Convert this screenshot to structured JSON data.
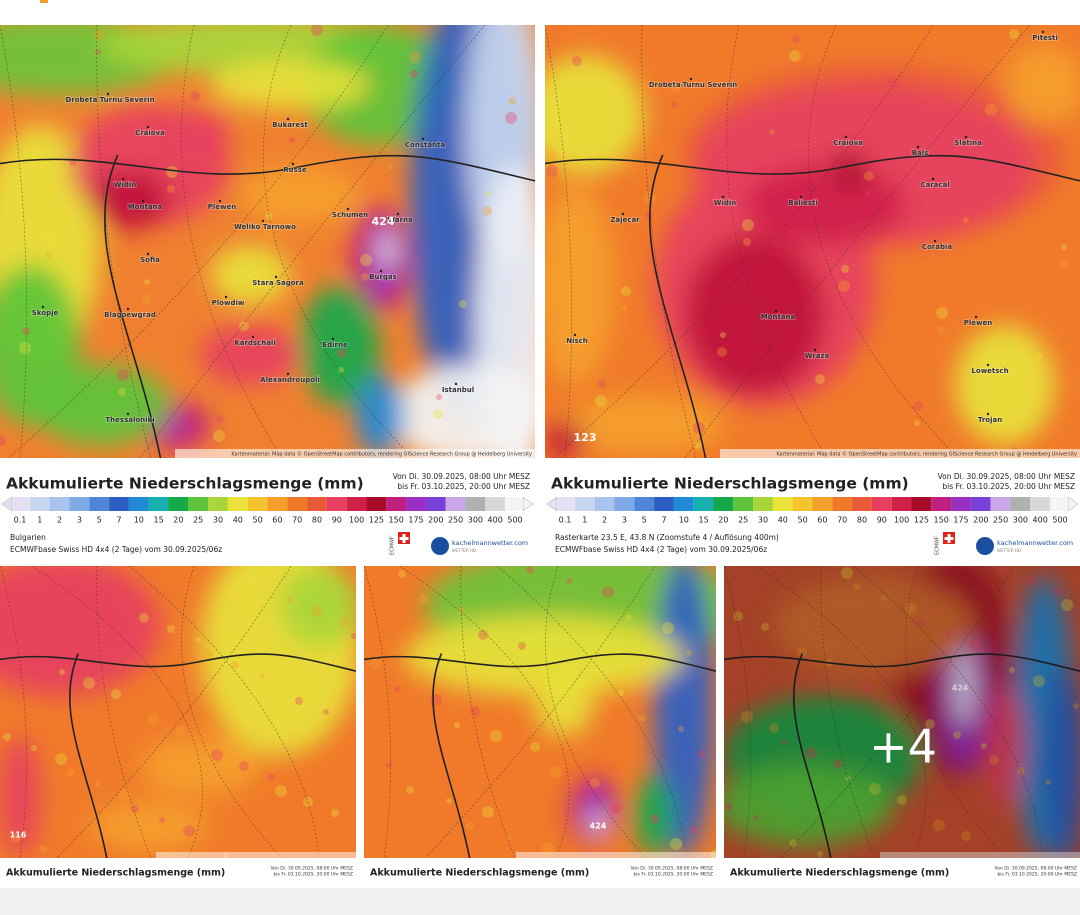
{
  "shared": {
    "title": "Akkumulierte Niederschlagsmenge (mm)",
    "date_from": "Von Di. 30.09.2025, 08:00 Uhr MESZ",
    "date_to": "bis Fr. 03.10.2025, 20:00 Uhr MESZ",
    "attribution": "Kartenmaterial: Map data © OpenStreetMap contributors, rendering GIScience Research Group @ Heidelberg University",
    "legend": [
      0.1,
      1,
      2,
      3,
      5,
      7,
      10,
      15,
      20,
      25,
      30,
      40,
      50,
      60,
      70,
      80,
      90,
      100,
      125,
      150,
      175,
      200,
      250,
      300,
      400,
      500
    ],
    "legend_colors": [
      "#e6e0f0",
      "#c8d6f0",
      "#a8c4ee",
      "#7ea8e6",
      "#4f84d8",
      "#2c5fc4",
      "#1f8ad6",
      "#17b0b0",
      "#17a84a",
      "#5cc43a",
      "#a8d63a",
      "#e8e23a",
      "#f5c431",
      "#f5a02a",
      "#f07a2a",
      "#ea5a3a",
      "#e64060",
      "#d0204a",
      "#a80c28",
      "#c02080",
      "#9a30c0",
      "#7a40d8",
      "#c8a8e8",
      "#b0b0b0",
      "#d8d8d8",
      "#f4f4f4"
    ],
    "logo_ecmwf": "ECMWF",
    "logo_site": "kachelmannwetter.com",
    "logo_sub": "WETTER HD"
  },
  "maps": [
    {
      "labels": [
        "Craiova",
        "Bukarest",
        "Constanta",
        "Widin",
        "Russe",
        "Montana",
        "Plewen",
        "Weliko Tarnowo",
        "Schumen",
        "Warna",
        "Sofia",
        "Burgas",
        "Stara Sagora",
        "Plowdiw",
        "Skopje",
        "Blagoewgrad",
        "Kardschali",
        "Alexandroupoli",
        "Thessaloniki",
        "Istanbul",
        "Edirne",
        "Drobeta Turnu Severin"
      ],
      "peak": 424,
      "footer": [
        "Bulgarien",
        "ECMWFbase Swiss HD 4x4 (2 Tage) vom 30.09.2025/06z"
      ]
    },
    {
      "labels": [
        "Pitesti",
        "Craiova",
        "Bals",
        "Slatina",
        "Caracal",
        "Widin",
        "Baliesti",
        "Montana",
        "Wraza",
        "Plewen",
        "Lowetsch",
        "Nisch",
        "Zajecar",
        "Drobeta-Turnu Severin",
        "Corabia",
        "Trojan"
      ],
      "peak": 123,
      "footer": [
        "Rasterkarte 23.5 E, 43.8 N (Zoomstufe 4 / Auflösung 400m)",
        "ECMWFbase Swiss HD 4x4 (2 Tage) vom 30.09.2025/06z"
      ]
    },
    {
      "peak": 116
    },
    {
      "peak": 424
    },
    {
      "peak": 424
    }
  ],
  "more_overlay": "+4"
}
